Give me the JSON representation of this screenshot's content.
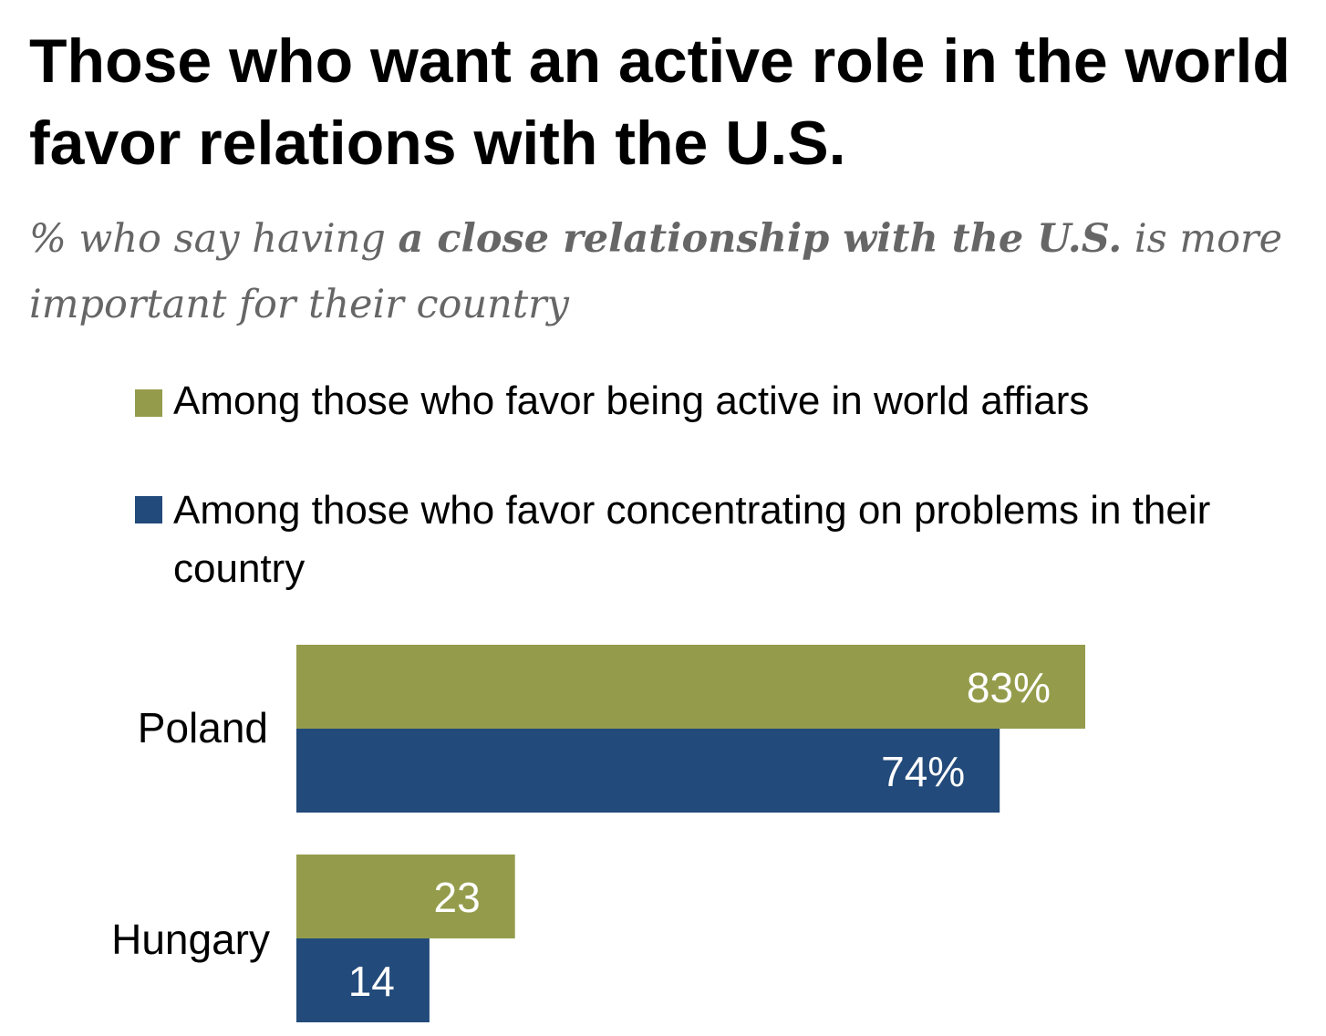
{
  "title": "Those who want an active role in the world favor relations with the U.S.",
  "subtitle": {
    "prefix": "% who say having ",
    "bold": "a close relationship with the U.S.",
    "suffix": " is more important for their country"
  },
  "colors": {
    "active": "#949c4b",
    "concentrate": "#224a7a",
    "label_text": "#ffffff"
  },
  "chart_data": {
    "type": "bar",
    "orientation": "horizontal",
    "categories": [
      "Poland",
      "Hungary"
    ],
    "series": [
      {
        "name": "Among those who favor being active in world affiars",
        "values": [
          83,
          23
        ],
        "labels": [
          "83%",
          "23"
        ]
      },
      {
        "name": "Among those who favor concentrating on problems in their country",
        "values": [
          74,
          14
        ],
        "labels": [
          "74%",
          "14"
        ]
      }
    ],
    "legend_position": "top"
  }
}
